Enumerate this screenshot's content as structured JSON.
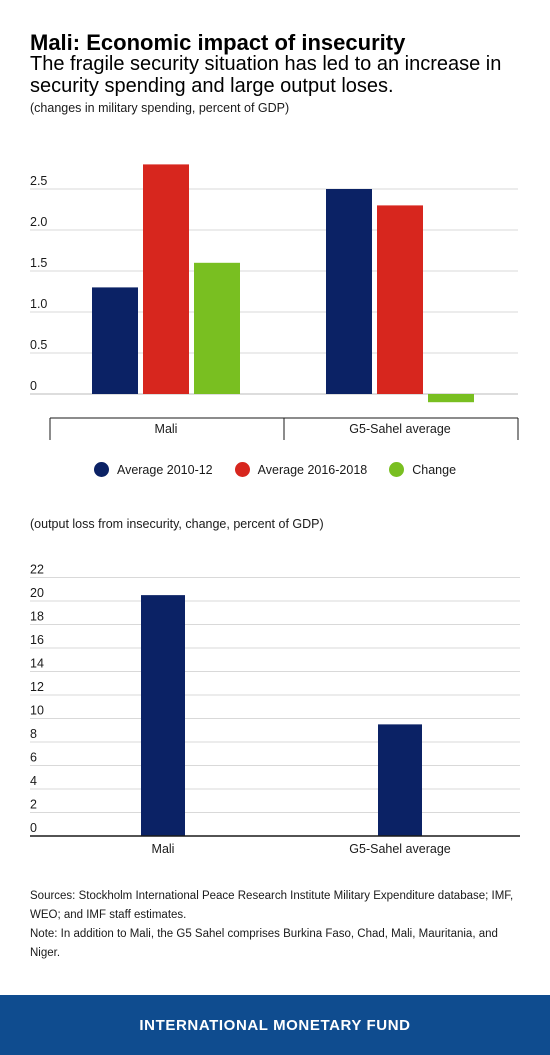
{
  "header": {
    "title": "Mali: Economic impact of insecurity",
    "subtitle": "The fragile security situation has led to an increase in security spending and large output loses.",
    "note1": "(changes in military spending, percent of GDP)",
    "note2": "(output loss from insecurity, change, percent of GDP)"
  },
  "chart_data": [
    {
      "type": "bar",
      "categories": [
        "Mali",
        "G5-Sahel average"
      ],
      "series": [
        {
          "name": "Average 2010-12",
          "color": "#0b2265",
          "values": [
            1.3,
            2.5
          ]
        },
        {
          "name": "Average 2016-2018",
          "color": "#d7261e",
          "values": [
            2.8,
            2.3
          ]
        },
        {
          "name": "Change",
          "color": "#79bf21",
          "values": [
            1.6,
            -0.1
          ]
        }
      ],
      "yticks": [
        0,
        0.5,
        1.0,
        1.5,
        2.0,
        2.5
      ],
      "ytick_labels": [
        "0",
        "0.5",
        "1.0",
        "1.5",
        "2.0",
        "2.5"
      ],
      "ylim": [
        -0.2,
        2.9
      ],
      "grid": true,
      "legend": "bottom"
    },
    {
      "type": "bar",
      "categories": [
        "Mali",
        "G5-Sahel average"
      ],
      "series": [
        {
          "color": "#0b2265",
          "values": [
            20.5,
            9.5
          ]
        }
      ],
      "yticks": [
        0,
        2,
        4,
        6,
        8,
        10,
        12,
        14,
        16,
        18,
        20,
        22
      ],
      "ytick_labels": [
        "0",
        "2",
        "4",
        "6",
        "8",
        "10",
        "12",
        "14",
        "16",
        "18",
        "20",
        "22"
      ],
      "ylim": [
        0,
        22
      ],
      "grid": true
    }
  ],
  "sources": {
    "line1": "Sources: Stockholm International Peace Research Institute Military Expenditure database; IMF, WEO; and IMF staff estimates.",
    "line2": "Note: In addition to Mali, the G5 Sahel comprises Burkina Faso, Chad, Mali, Mauritania, and Niger."
  },
  "footer": {
    "label": "INTERNATIONAL MONETARY FUND"
  }
}
